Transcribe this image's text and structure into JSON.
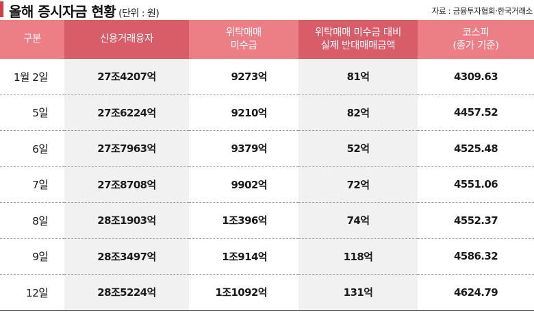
{
  "title": {
    "main": "올해 증시자금 현황",
    "unit": "(단위 : 원)"
  },
  "source": "자료 : 금융투자협회·한국거래소",
  "columns": [
    {
      "line1": "구분",
      "line2": ""
    },
    {
      "line1": "신용거래융자",
      "line2": ""
    },
    {
      "line1": "위탁매매",
      "line2": "미수금"
    },
    {
      "line1": "위탁매매 미수금 대비",
      "line2": "실제 반대매매금액"
    },
    {
      "line1": "코스피",
      "line2": "(종가 기준)"
    }
  ],
  "rows": [
    {
      "date": "1월 2일",
      "credit": "27조4207억",
      "receivable": "9273억",
      "liquidation": "81억",
      "kospi": "4309.63"
    },
    {
      "date": "5일",
      "credit": "27조6224억",
      "receivable": "9210억",
      "liquidation": "82억",
      "kospi": "4457.52"
    },
    {
      "date": "6일",
      "credit": "27조7963억",
      "receivable": "9379억",
      "liquidation": "52억",
      "kospi": "4525.48"
    },
    {
      "date": "7일",
      "credit": "27조8708억",
      "receivable": "9902억",
      "liquidation": "72억",
      "kospi": "4551.06"
    },
    {
      "date": "8일",
      "credit": "28조1903억",
      "receivable": "1조396억",
      "liquidation": "74억",
      "kospi": "4552.37"
    },
    {
      "date": "9일",
      "credit": "28조3497억",
      "receivable": "1조914억",
      "liquidation": "118억",
      "kospi": "4586.32"
    },
    {
      "date": "12일",
      "credit": "28조5224억",
      "receivable": "1조1092억",
      "liquidation": "131억",
      "kospi": "4624.79"
    }
  ],
  "colors": {
    "accent": "#d93a4a",
    "header_light": "#ec7e86",
    "header_dark": "#d85d69",
    "shade": "#f1f1f1"
  }
}
